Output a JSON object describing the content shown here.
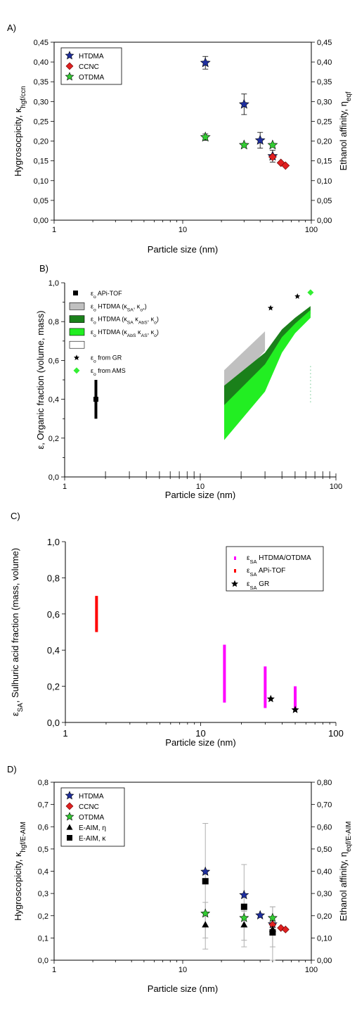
{
  "chart_data": [
    {
      "panel": "A)",
      "type": "scatter",
      "xlabel": "Particle size (nm)",
      "ylabel": "Hygrosocpicity, κhgf/ccn",
      "ylabel_right": "Ethanol affinity, ηeqf",
      "xscale": "log",
      "xlim": [
        1,
        100
      ],
      "ylim": [
        0,
        0.45
      ],
      "x_ticks": [
        "1",
        "10",
        "100"
      ],
      "y_ticks": [
        "0,00",
        "0,05",
        "0,10",
        "0,15",
        "0,20",
        "0,25",
        "0,30",
        "0,35",
        "0,40",
        "0,45"
      ],
      "legend_position": "top-left",
      "series": [
        {
          "name": "HTDMA",
          "color": "#1f2f9f",
          "marker": "star",
          "x": [
            15,
            30,
            40,
            50
          ],
          "y": [
            0.398,
            0.293,
            0.202,
            0.162
          ],
          "err": [
            0.016,
            0.026,
            0.02,
            0.015
          ]
        },
        {
          "name": "CCNC",
          "color": "#e02020",
          "marker": "diamond",
          "x": [
            50,
            58,
            63
          ],
          "y": [
            0.16,
            0.145,
            0.138
          ]
        },
        {
          "name": "OTDMA",
          "color": "#33cc33",
          "marker": "star",
          "x": [
            15,
            30,
            50
          ],
          "y": [
            0.21,
            0.19,
            0.19
          ],
          "err": [
            0.008,
            0,
            0
          ]
        }
      ]
    },
    {
      "panel": "B)",
      "type": "area",
      "xlabel": "Particle size (nm)",
      "ylabel": "ε, Organic fraction (volume, mass)",
      "xscale": "log",
      "xlim": [
        1,
        100
      ],
      "ylim": [
        0,
        1
      ],
      "x_ticks": [
        "1",
        "10",
        "100"
      ],
      "y_ticks": [
        "0,0",
        "0,2",
        "0,4",
        "0,6",
        "0,8",
        "1,0"
      ],
      "legend_position": "top-left",
      "legend": [
        "εo APi-TOF",
        "εo HTDMA (κSA, κo*)",
        "εo HTDMA (κSA κAbS, κo)",
        "εo HTDMA (κAbS κAS, κo)",
        "",
        "εo from GR",
        "εo from AMS"
      ],
      "api_tof": {
        "x": 1.7,
        "y": 0.4,
        "low": 0.3,
        "high": 0.5
      },
      "band_grey": {
        "x": [
          15,
          30
        ],
        "low": [
          0.42,
          0.65
        ],
        "high": [
          0.55,
          0.75
        ]
      },
      "band_dark": {
        "x": [
          15,
          30,
          40,
          50,
          65
        ],
        "low": [
          0.25,
          0.5,
          0.68,
          0.77,
          0.84
        ],
        "high": [
          0.47,
          0.64,
          0.76,
          0.82,
          0.88
        ]
      },
      "band_light": {
        "x": [
          15,
          30,
          40,
          50,
          65
        ],
        "low": [
          0.19,
          0.44,
          0.64,
          0.74,
          0.82
        ],
        "high": [
          0.37,
          0.58,
          0.72,
          0.79,
          0.86
        ]
      },
      "gr_points": {
        "x": [
          33,
          52
        ],
        "y": [
          0.87,
          0.93
        ]
      },
      "ams_points": {
        "x": [
          65
        ],
        "y": [
          0.95
        ]
      }
    },
    {
      "panel": "C)",
      "type": "bar",
      "xlabel": "Particle size (nm)",
      "ylabel": "εSA, Sulhuric acid fraction (mass, volume)",
      "xscale": "log",
      "xlim": [
        1,
        100
      ],
      "ylim": [
        0,
        1
      ],
      "x_ticks": [
        "1",
        "10",
        "100"
      ],
      "y_ticks": [
        "0,0",
        "0,2",
        "0,4",
        "0,6",
        "0,8",
        "1,0"
      ],
      "legend_position": "top-right",
      "legend": [
        "εSA HTDMA/OTDMA",
        "εSA APi-TOF",
        "εSA GR"
      ],
      "ranges": [
        {
          "series": "εSA APi-TOF",
          "color": "#ff0000",
          "x": 1.7,
          "low": 0.5,
          "high": 0.7
        },
        {
          "series": "εSA HTDMA/OTDMA",
          "color": "#ff00ff",
          "x": 15,
          "low": 0.11,
          "high": 0.43
        },
        {
          "series": "εSA HTDMA/OTDMA",
          "color": "#ff00ff",
          "x": 30,
          "low": 0.08,
          "high": 0.31
        },
        {
          "series": "εSA HTDMA/OTDMA",
          "color": "#ff00ff",
          "x": 50,
          "low": 0.06,
          "high": 0.2
        }
      ],
      "gr_points": {
        "x": [
          33,
          50
        ],
        "y": [
          0.13,
          0.07
        ]
      }
    },
    {
      "panel": "D)",
      "type": "scatter",
      "xlabel": "Particle size (nm)",
      "ylabel": "Hygroscopicity, κhgf/E-AIM",
      "ylabel_right": "Ethanol affinity, ηeqf/E-AIM",
      "xscale": "log",
      "xlim": [
        1,
        100
      ],
      "ylim": [
        0,
        0.8
      ],
      "x_ticks": [
        "1",
        "10",
        "100"
      ],
      "y_ticks": [
        "0,0",
        "0,1",
        "0,2",
        "0,3",
        "0,4",
        "0,5",
        "0,6",
        "0,7",
        "0,8"
      ],
      "y_ticks_right": [
        "0,00",
        "0,10",
        "0,20",
        "0,30",
        "0,40",
        "0,50",
        "0,60",
        "0,70",
        "0,80"
      ],
      "legend_position": "top-left",
      "series": [
        {
          "name": "HTDMA",
          "color": "#1f2f9f",
          "marker": "star",
          "x": [
            15,
            30,
            40,
            50
          ],
          "y": [
            0.398,
            0.293,
            0.202,
            0.162
          ]
        },
        {
          "name": "CCNC",
          "color": "#e02020",
          "marker": "diamond",
          "x": [
            50,
            58,
            63
          ],
          "y": [
            0.16,
            0.145,
            0.138
          ]
        },
        {
          "name": "OTDMA",
          "color": "#33cc33",
          "marker": "star",
          "x": [
            15,
            30,
            50
          ],
          "y": [
            0.21,
            0.19,
            0.19
          ]
        },
        {
          "name": "E-AIM, η",
          "color": "#000000",
          "marker": "triangle",
          "x": [
            15,
            30,
            50
          ],
          "y": [
            0.16,
            0.16,
            0.14
          ],
          "err_low": [
            0.05,
            0.06,
            0.0
          ],
          "err_high": [
            0.26,
            0.22,
            0.24
          ]
        },
        {
          "name": "E-AIM, κ",
          "color": "#000000",
          "marker": "square",
          "x": [
            15,
            30,
            50
          ],
          "y": [
            0.355,
            0.24,
            0.125
          ],
          "err_low": [
            0.1,
            0.09,
            0.06
          ],
          "err_high": [
            0.615,
            0.43,
            0.24
          ]
        }
      ]
    }
  ]
}
